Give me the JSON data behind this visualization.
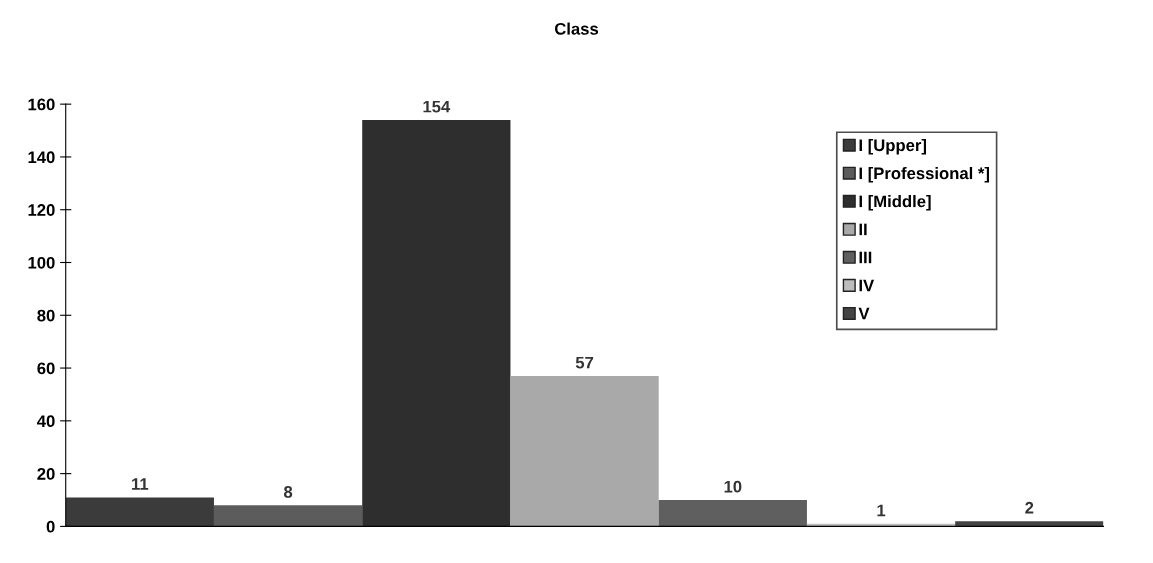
{
  "chart_data": {
    "type": "bar",
    "title": "Class",
    "categories": [
      null,
      null,
      null,
      null,
      null,
      null,
      null
    ],
    "series": [
      {
        "name": "I [Upper]",
        "color": "#3b3b3b",
        "values": [
          11,
          null,
          null,
          null,
          null,
          null,
          null
        ]
      },
      {
        "name": "I [Professional *]",
        "color": "#5c5c5c",
        "values": [
          null,
          8,
          null,
          null,
          null,
          null,
          null
        ]
      },
      {
        "name": "I [Middle]",
        "color": "#2e2e2e",
        "values": [
          null,
          null,
          154,
          null,
          null,
          null,
          null
        ]
      },
      {
        "name": "II",
        "color": "#a9a9a9",
        "values": [
          null,
          null,
          null,
          57,
          null,
          null,
          null
        ]
      },
      {
        "name": "III",
        "color": "#5f5f5f",
        "values": [
          null,
          null,
          null,
          null,
          10,
          null,
          null
        ]
      },
      {
        "name": "IV",
        "color": "#bdbdbd",
        "values": [
          null,
          null,
          null,
          null,
          null,
          1,
          null
        ]
      },
      {
        "name": "V",
        "color": "#444444",
        "values": [
          null,
          null,
          null,
          null,
          null,
          null,
          2
        ]
      }
    ],
    "ylim": [
      0,
      160
    ],
    "yticks": [
      0,
      20,
      40,
      60,
      80,
      100,
      120,
      140,
      160
    ],
    "grid": false,
    "legend": "right",
    "tick_labels": "y",
    "data_labels": true
  }
}
